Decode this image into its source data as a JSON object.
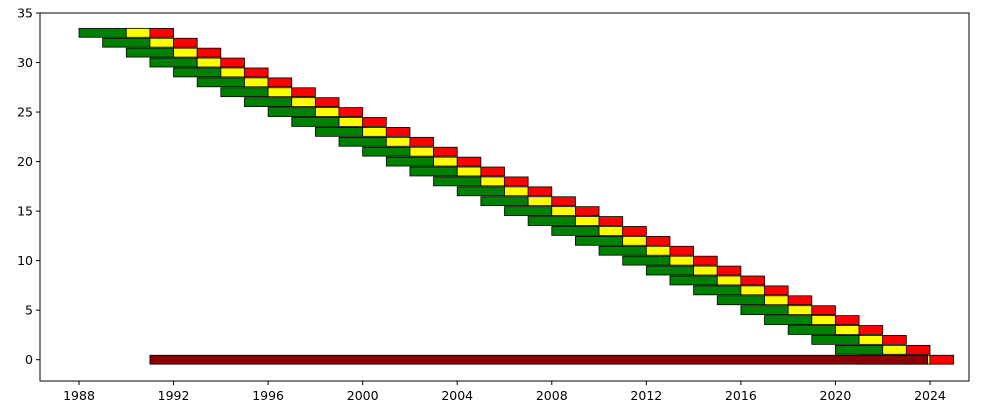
{
  "chart_data": {
    "type": "bar",
    "subtype": "horizontal-timeline",
    "title": "",
    "xlabel": "",
    "ylabel": "",
    "xlim": [
      1986.35,
      2025.65
    ],
    "ylim": [
      -2.15,
      35
    ],
    "xticks": [
      1988,
      1992,
      1996,
      2000,
      2004,
      2008,
      2012,
      2016,
      2020,
      2024
    ],
    "yticks": [
      0,
      5,
      10,
      15,
      20,
      25,
      30,
      35
    ],
    "grid": false,
    "legend": "none",
    "colors": {
      "green": "#008000",
      "yellow": "#ffff00",
      "red": "#ff0000",
      "dark_red": "#8b0000",
      "edge": "#000000"
    },
    "series": [
      {
        "y_start": 33,
        "y_step": -1,
        "count": 34,
        "x_start": 1988.0,
        "x_step": 1.0,
        "segments": [
          {
            "color": "green",
            "length": 2.0
          },
          {
            "color": "yellow",
            "length": 1.0
          },
          {
            "color": "red",
            "length": 1.0
          }
        ]
      }
    ],
    "bottom_bar": {
      "y": 0,
      "x_start": 1991.0,
      "x_end": 2023.9,
      "color": "dark_red"
    }
  }
}
